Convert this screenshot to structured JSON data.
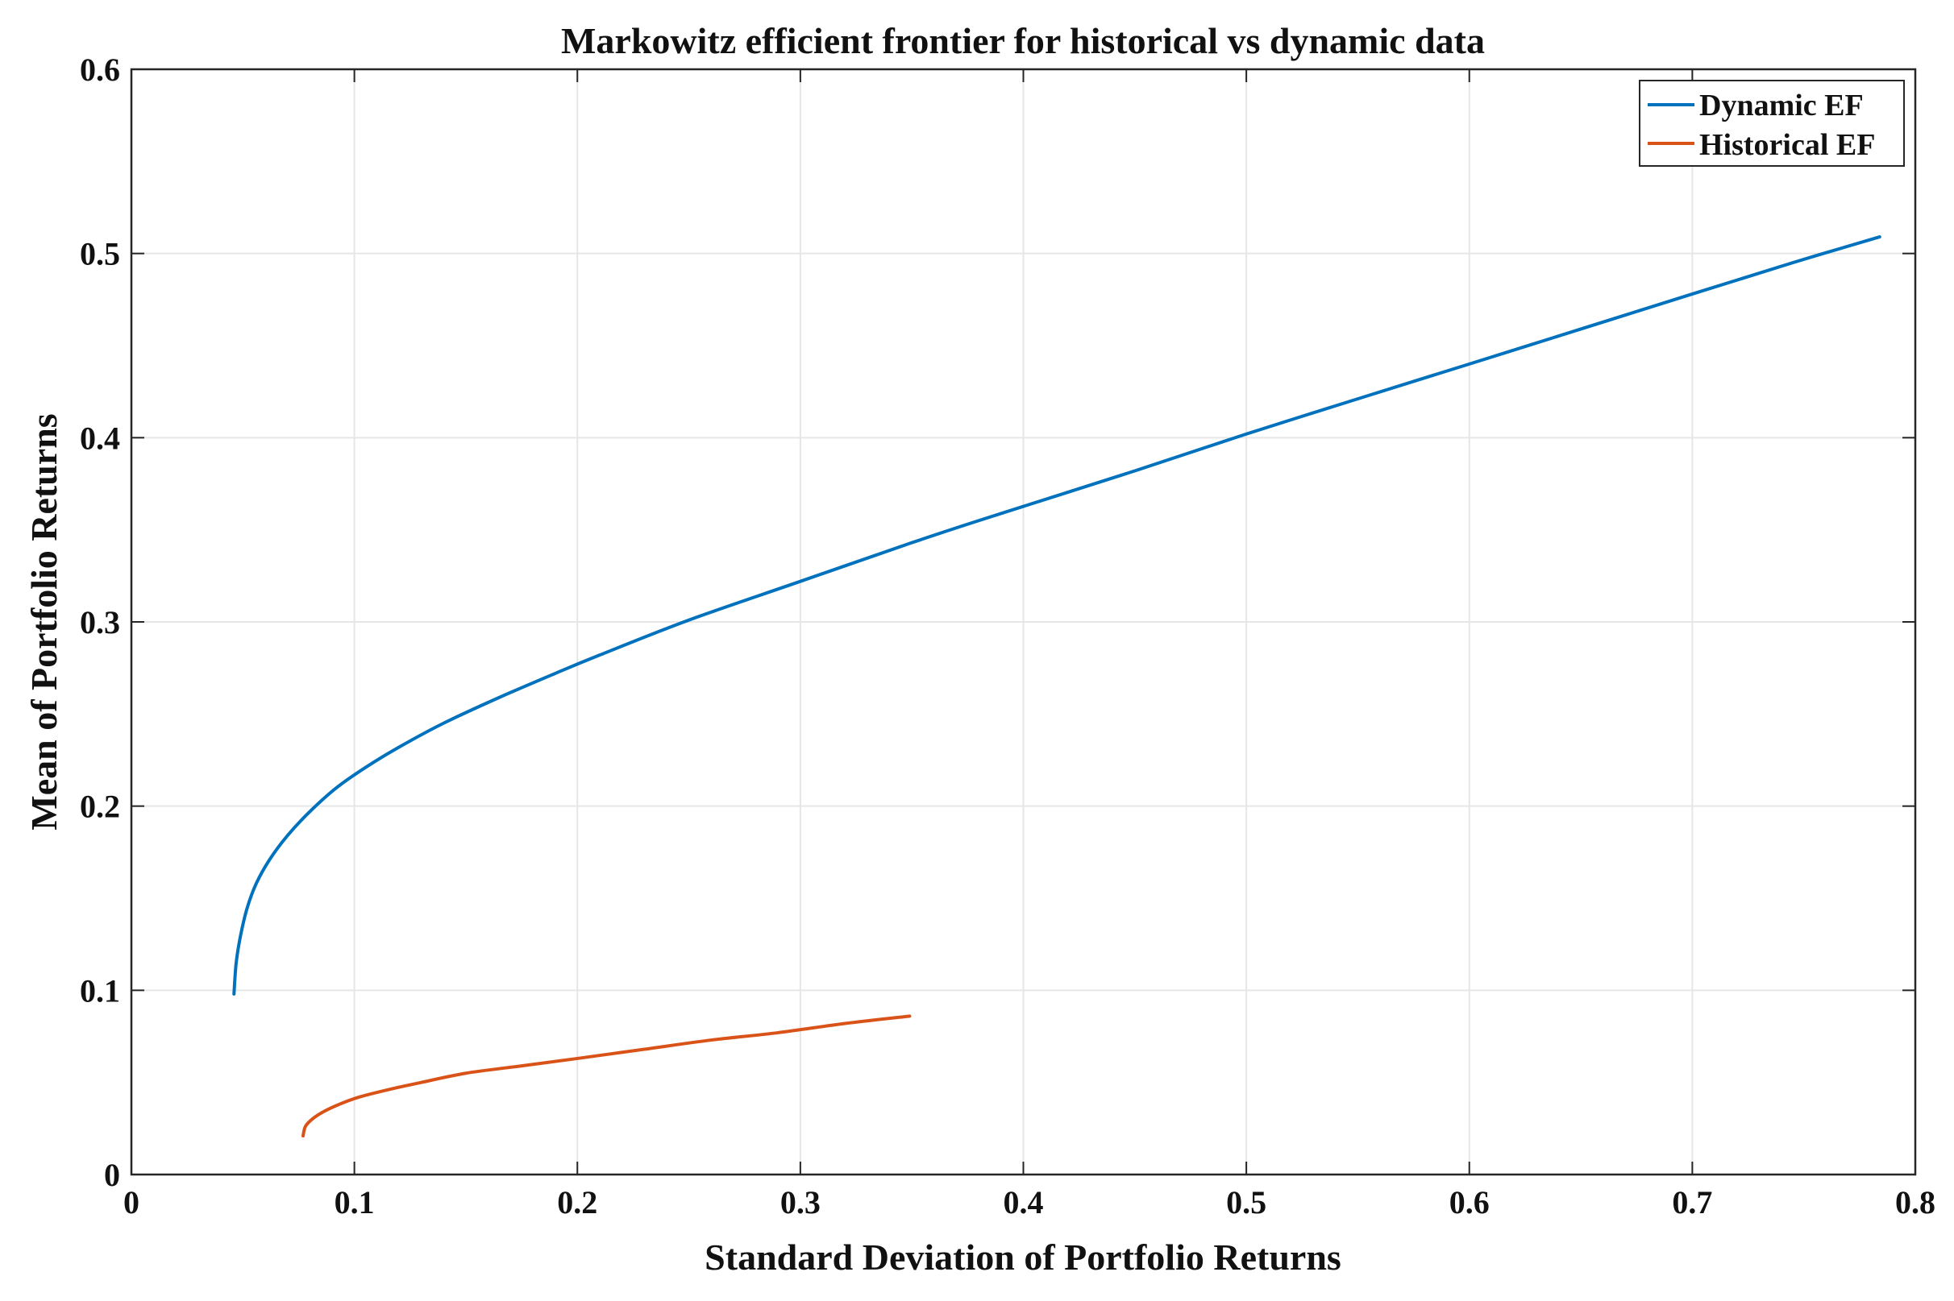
{
  "chart_data": {
    "type": "line",
    "title": "Markowitz efficient frontier for historical vs dynamic data",
    "xlabel": "Standard Deviation of Portfolio Returns",
    "ylabel": "Mean of Portfolio Returns",
    "xlim": [
      0,
      0.8
    ],
    "ylim": [
      0,
      0.6
    ],
    "xticks": [
      0,
      0.1,
      0.2,
      0.3,
      0.4,
      0.5,
      0.6,
      0.7,
      0.8
    ],
    "yticks": [
      0,
      0.1,
      0.2,
      0.3,
      0.4,
      0.5,
      0.6
    ],
    "xtick_labels": [
      "0",
      "0.1",
      "0.2",
      "0.3",
      "0.4",
      "0.5",
      "0.6",
      "0.7",
      "0.8"
    ],
    "ytick_labels": [
      "0",
      "0.1",
      "0.2",
      "0.3",
      "0.4",
      "0.5",
      "0.6"
    ],
    "grid": true,
    "legend_position": "top-right",
    "series": [
      {
        "name": "Dynamic EF",
        "color": "#0072BD",
        "x": [
          0.046,
          0.047,
          0.049,
          0.052,
          0.056,
          0.062,
          0.07,
          0.08,
          0.092,
          0.105,
          0.12,
          0.14,
          0.165,
          0.19,
          0.21,
          0.25,
          0.3,
          0.35,
          0.38,
          0.45,
          0.5,
          0.555,
          0.6,
          0.65,
          0.7,
          0.745,
          0.784
        ],
        "y": [
          0.098,
          0.115,
          0.13,
          0.145,
          0.158,
          0.171,
          0.184,
          0.197,
          0.21,
          0.221,
          0.232,
          0.245,
          0.259,
          0.272,
          0.282,
          0.301,
          0.322,
          0.343,
          0.355,
          0.382,
          0.402,
          0.423,
          0.44,
          0.459,
          0.478,
          0.495,
          0.509
        ]
      },
      {
        "name": "Historical EF",
        "color": "#D95319",
        "x": [
          0.077,
          0.078,
          0.081,
          0.086,
          0.093,
          0.102,
          0.115,
          0.13,
          0.15,
          0.175,
          0.2,
          0.23,
          0.26,
          0.29,
          0.32,
          0.349
        ],
        "y": [
          0.021,
          0.026,
          0.03,
          0.034,
          0.038,
          0.042,
          0.046,
          0.05,
          0.055,
          0.059,
          0.063,
          0.068,
          0.073,
          0.077,
          0.082,
          0.086
        ]
      }
    ]
  }
}
